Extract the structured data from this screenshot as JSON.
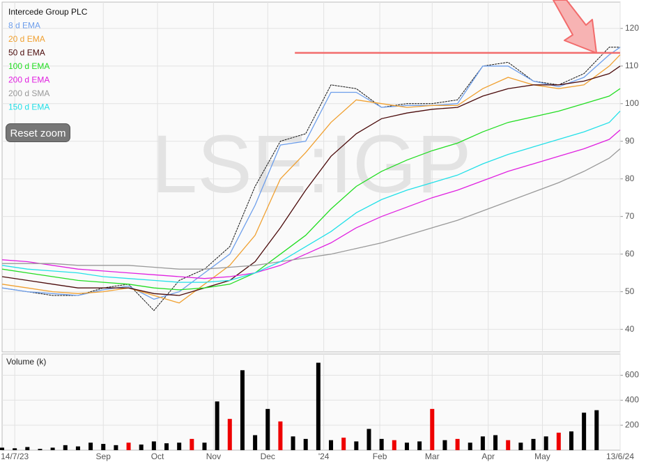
{
  "chart_data": [
    {
      "type": "line",
      "watermark": "LSE:IGP",
      "x": [
        "2023-07-07",
        "2023-07-21",
        "2023-08-04",
        "2023-08-18",
        "2023-09-01",
        "2023-09-15",
        "2023-09-29",
        "2023-10-13",
        "2023-10-27",
        "2023-11-10",
        "2023-11-24",
        "2023-12-08",
        "2023-12-22",
        "2024-01-05",
        "2024-01-19",
        "2024-02-02",
        "2024-02-16",
        "2024-03-01",
        "2024-03-15",
        "2024-03-29",
        "2024-04-12",
        "2024-04-26",
        "2024-05-10",
        "2024-05-24",
        "2024-06-07",
        "2024-06-13"
      ],
      "series": [
        {
          "name": "Intercede Group PLC",
          "color": "#111111",
          "values": [
            51,
            50,
            49,
            49,
            51,
            52,
            45,
            53,
            56,
            62,
            78,
            90,
            92,
            105,
            104,
            99,
            100,
            100,
            101,
            110,
            111,
            106,
            105,
            108,
            115,
            115
          ]
        },
        {
          "name": "8 d EMA",
          "color": "#6d9eeb",
          "values": [
            51,
            50,
            49.5,
            49,
            50.5,
            51.5,
            48,
            50,
            55,
            60,
            73,
            89,
            90,
            103,
            103,
            99,
            99.5,
            99.5,
            100,
            110,
            110,
            106,
            104.5,
            107,
            113,
            115
          ]
        },
        {
          "name": "20 d EMA",
          "color": "#f0a030",
          "values": [
            52,
            51,
            50,
            49.5,
            50,
            51,
            49,
            47,
            52,
            57,
            65,
            80,
            87,
            95,
            101,
            100,
            99,
            99.5,
            99.5,
            104,
            107,
            105,
            104,
            105,
            110,
            113
          ]
        },
        {
          "name": "50 d EMA",
          "color": "#4a0a0a",
          "values": [
            54,
            53,
            52,
            51,
            51,
            51,
            49.5,
            49,
            51,
            53,
            58,
            67,
            77,
            86,
            92,
            96,
            97.5,
            98.5,
            99,
            102,
            104,
            105,
            105,
            106,
            108,
            110
          ]
        },
        {
          "name": "100 d EMA",
          "color": "#22dd22",
          "values": [
            56,
            55,
            54,
            53,
            52.5,
            52,
            51,
            50.5,
            51,
            52,
            55,
            60,
            65,
            72,
            78,
            82,
            85,
            87.5,
            89.5,
            92.5,
            95,
            96.5,
            98,
            100,
            102,
            104
          ]
        },
        {
          "name": "200 d EMA",
          "color": "#e020e0",
          "values": [
            58.5,
            58,
            57,
            56,
            55.5,
            55,
            54.5,
            54,
            53.5,
            54,
            55,
            57,
            60,
            63,
            67,
            70,
            72.5,
            75,
            77,
            79.5,
            82,
            84,
            86,
            88,
            90.5,
            93
          ]
        },
        {
          "name": "200 d SMA",
          "color": "#999999",
          "values": [
            57.5,
            57.5,
            57.5,
            57,
            57,
            57,
            56.5,
            56,
            56,
            56.5,
            57,
            58,
            59,
            60,
            61.5,
            63,
            65,
            67,
            69,
            71.5,
            74,
            76.5,
            79,
            82,
            85.5,
            88
          ]
        },
        {
          "name": "150 d EMA",
          "color": "#22e0e8",
          "values": [
            57,
            56,
            55.5,
            55,
            54,
            53.5,
            53,
            52.5,
            52.5,
            53,
            55,
            58,
            62,
            66,
            71,
            74.5,
            77,
            79,
            81,
            84,
            86.5,
            88.5,
            90.5,
            92.5,
            95,
            98
          ]
        }
      ],
      "hline": {
        "value": 113.5,
        "x": [
          "2023-12-16",
          "2024-06-13"
        ],
        "color": "#f26b6b"
      },
      "xlim": [
        "2023-07-07",
        "2024-06-13"
      ],
      "ylim": [
        34,
        127
      ],
      "yticks": [
        40,
        50,
        60,
        70,
        80,
        90,
        100,
        110,
        120
      ],
      "grid": true
    },
    {
      "type": "bar",
      "title": "Volume (k)",
      "x": [
        "2023-07-07",
        "2023-07-14",
        "2023-07-21",
        "2023-07-28",
        "2023-08-04",
        "2023-08-11",
        "2023-08-18",
        "2023-08-25",
        "2023-09-01",
        "2023-09-08",
        "2023-09-15",
        "2023-09-22",
        "2023-09-29",
        "2023-10-06",
        "2023-10-13",
        "2023-10-20",
        "2023-10-27",
        "2023-11-03",
        "2023-11-10",
        "2023-11-17",
        "2023-11-24",
        "2023-12-01",
        "2023-12-08",
        "2023-12-15",
        "2023-12-22",
        "2023-12-29",
        "2024-01-05",
        "2024-01-12",
        "2024-01-19",
        "2024-01-26",
        "2024-02-02",
        "2024-02-09",
        "2024-02-16",
        "2024-02-23",
        "2024-03-01",
        "2024-03-08",
        "2024-03-15",
        "2024-03-22",
        "2024-03-29",
        "2024-04-05",
        "2024-04-12",
        "2024-04-19",
        "2024-04-26",
        "2024-05-03",
        "2024-05-10",
        "2024-05-17",
        "2024-05-24",
        "2024-05-31"
      ],
      "values": [
        20,
        15,
        25,
        10,
        20,
        40,
        30,
        60,
        50,
        40,
        60,
        45,
        70,
        55,
        60,
        90,
        60,
        390,
        250,
        640,
        120,
        330,
        230,
        110,
        90,
        700,
        80,
        100,
        70,
        170,
        90,
        80,
        60,
        70,
        330,
        80,
        90,
        60,
        110,
        120,
        80,
        60,
        90,
        110,
        140,
        150,
        300,
        320
      ],
      "bar_colors": [
        "#000",
        "#000",
        "#000",
        "#000",
        "#000",
        "#000",
        "#000",
        "#000",
        "#000",
        "#000",
        "#e00",
        "#000",
        "#000",
        "#000",
        "#000",
        "#e00",
        "#000",
        "#000",
        "#e00",
        "#000",
        "#000",
        "#000",
        "#e00",
        "#000",
        "#000",
        "#000",
        "#000",
        "#e00",
        "#000",
        "#000",
        "#000",
        "#e00",
        "#000",
        "#000",
        "#e00",
        "#000",
        "#e00",
        "#000",
        "#000",
        "#000",
        "#e00",
        "#000",
        "#000",
        "#000",
        "#e00",
        "#000",
        "#000",
        "#000"
      ],
      "xlim": [
        "2023-07-07",
        "2024-06-13"
      ],
      "xticks": [
        {
          "value": "2023-07-14",
          "label": "14/7/23"
        },
        {
          "value": "2023-09-01",
          "label": "Sep"
        },
        {
          "value": "2023-10-01",
          "label": "Oct"
        },
        {
          "value": "2023-11-01",
          "label": "Nov"
        },
        {
          "value": "2023-12-01",
          "label": "Dec"
        },
        {
          "value": "2024-01-01",
          "label": "'24"
        },
        {
          "value": "2024-02-01",
          "label": "Feb"
        },
        {
          "value": "2024-03-01",
          "label": "Mar"
        },
        {
          "value": "2024-04-01",
          "label": "Apr"
        },
        {
          "value": "2024-05-01",
          "label": "May"
        },
        {
          "value": "2024-06-13",
          "label": "13/6/24"
        }
      ],
      "ylim": [
        0,
        770
      ],
      "yticks": [
        200,
        400,
        600
      ],
      "grid": true
    }
  ],
  "reset_button": "Reset zoom"
}
